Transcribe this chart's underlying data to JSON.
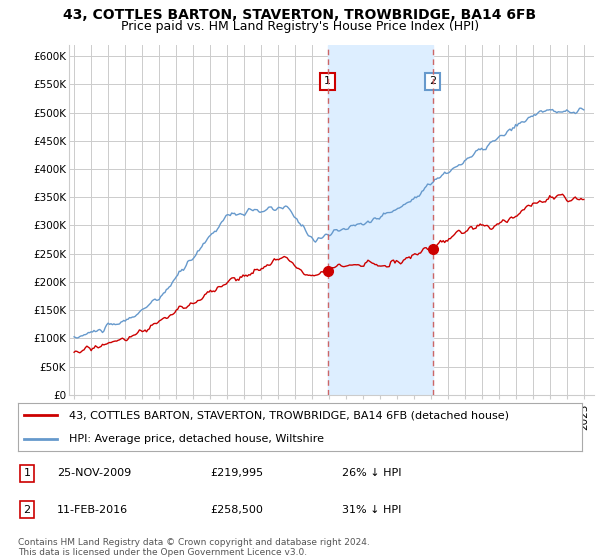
{
  "title": "43, COTTLES BARTON, STAVERTON, TROWBRIDGE, BA14 6FB",
  "subtitle": "Price paid vs. HM Land Registry's House Price Index (HPI)",
  "ylim": [
    0,
    620000
  ],
  "yticks": [
    0,
    50000,
    100000,
    150000,
    200000,
    250000,
    300000,
    350000,
    400000,
    450000,
    500000,
    550000,
    600000
  ],
  "ytick_labels": [
    "£0",
    "£50K",
    "£100K",
    "£150K",
    "£200K",
    "£250K",
    "£300K",
    "£350K",
    "£400K",
    "£450K",
    "£500K",
    "£550K",
    "£600K"
  ],
  "transaction1": {
    "date_num": 2009.92,
    "price": 219995,
    "label": "1",
    "date_str": "25-NOV-2009",
    "price_str": "£219,995",
    "pct": "26% ↓ HPI"
  },
  "transaction2": {
    "date_num": 2016.12,
    "price": 258500,
    "label": "2",
    "date_str": "11-FEB-2016",
    "price_str": "£258,500",
    "pct": "31% ↓ HPI"
  },
  "legend_property": "43, COTTLES BARTON, STAVERTON, TROWBRIDGE, BA14 6FB (detached house)",
  "legend_hpi": "HPI: Average price, detached house, Wiltshire",
  "footnote": "Contains HM Land Registry data © Crown copyright and database right 2024.\nThis data is licensed under the Open Government Licence v3.0.",
  "line_color_property": "#cc0000",
  "line_color_hpi": "#6699cc",
  "vline_color": "#cc6666",
  "shade_color": "#ddeeff",
  "grid_color": "#cccccc",
  "background_color": "#ffffff",
  "title_fontsize": 10,
  "subtitle_fontsize": 9,
  "tick_fontsize": 7.5,
  "legend_fontsize": 8,
  "footnote_fontsize": 6.5,
  "table_fontsize": 8
}
